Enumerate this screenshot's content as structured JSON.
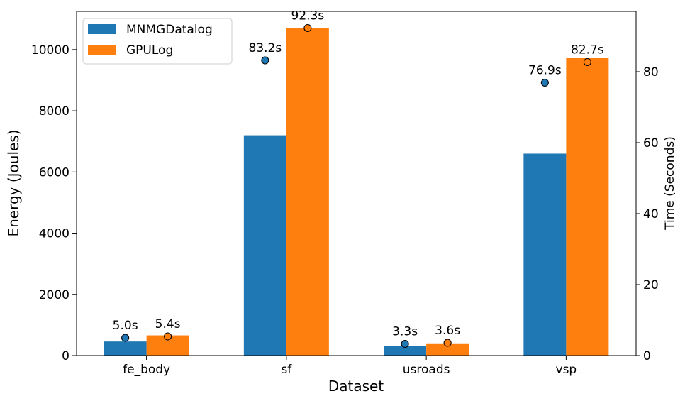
{
  "chart_data": {
    "type": "bar",
    "categories": [
      "fe_body",
      "sf",
      "usroads",
      "vsp"
    ],
    "xlabel": "Dataset",
    "ylabel": "Energy (Joules)",
    "y2label": "Time (Seconds)",
    "ylim": [
      0,
      11250
    ],
    "y2lim": [
      0,
      97
    ],
    "yticks": [
      0,
      2000,
      4000,
      6000,
      8000,
      10000
    ],
    "y2ticks": [
      0,
      20,
      40,
      60,
      80
    ],
    "legend_position": "top-left",
    "series": [
      {
        "name": "MNMGDatalog",
        "color": "#1f77b4",
        "energy": [
          460,
          7200,
          310,
          6600
        ],
        "time": [
          5.0,
          83.2,
          3.3,
          76.9
        ],
        "time_labels": [
          "5.0s",
          "83.2s",
          "3.3s",
          "76.9s"
        ]
      },
      {
        "name": "GPULog",
        "color": "#ff7f0e",
        "energy": [
          660,
          10700,
          400,
          9720
        ],
        "time": [
          5.4,
          92.3,
          3.6,
          82.7
        ],
        "time_labels": [
          "5.4s",
          "92.3s",
          "3.6s",
          "82.7s"
        ]
      }
    ]
  }
}
